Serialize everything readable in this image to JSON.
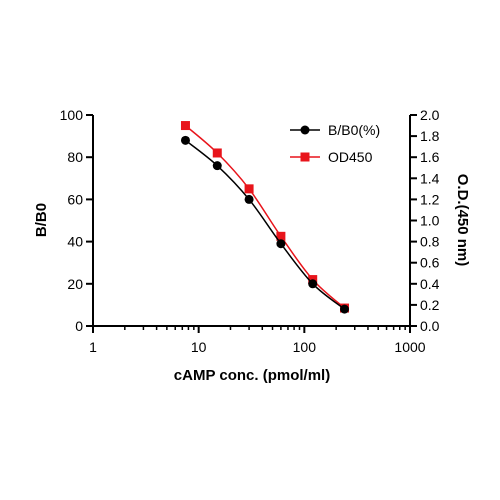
{
  "chart_data": {
    "type": "line",
    "title": "",
    "xlabel": "cAMP conc. (pmol/ml)",
    "ylabel": "B/B0",
    "y2label": "O.D.(450 nm)",
    "x_scale": "log",
    "xlim": [
      1,
      1000
    ],
    "ylim": [
      0,
      100
    ],
    "y2lim": [
      0,
      2.0
    ],
    "x_ticks": [
      "1",
      "10",
      "100",
      "1000"
    ],
    "y_ticks": [
      "0",
      "20",
      "40",
      "60",
      "80",
      "100"
    ],
    "y2_ticks": [
      "0.0",
      "0.2",
      "0.4",
      "0.6",
      "0.8",
      "1.0",
      "1.2",
      "1.4",
      "1.6",
      "1.8",
      "2.0"
    ],
    "legend_position": "top-right",
    "grid": false,
    "series": [
      {
        "name": "B/B0(%)",
        "axis": "left",
        "marker": "circle",
        "color": "#000000",
        "x": [
          7.5,
          15,
          30,
          60,
          120,
          240
        ],
        "y": [
          88,
          76,
          60,
          39,
          20,
          8
        ]
      },
      {
        "name": "OD450",
        "axis": "right",
        "marker": "square",
        "color": "#e8141b",
        "x": [
          7.5,
          15,
          30,
          60,
          120,
          240
        ],
        "y": [
          1.9,
          1.64,
          1.3,
          0.85,
          0.44,
          0.17
        ]
      }
    ]
  }
}
